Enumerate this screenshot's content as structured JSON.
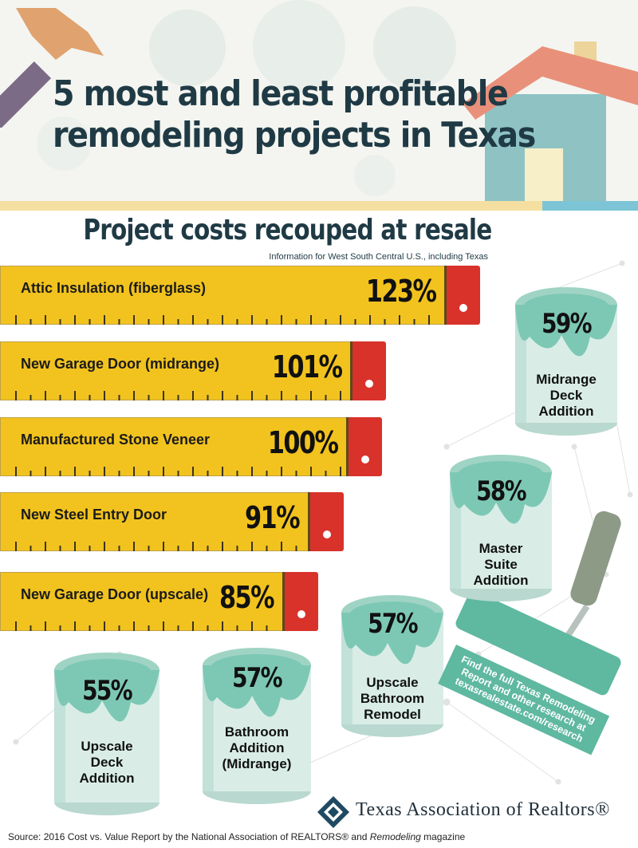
{
  "header": {
    "title_line1": "5 most and least profitable",
    "title_line2": "remodeling projects in Texas"
  },
  "chart": {
    "subtitle": "Project costs recouped at resale",
    "note": "Information for West South Central U.S., including Texas"
  },
  "chart_data": {
    "type": "bar",
    "title": "Project costs recouped at resale",
    "subtitle": "Information for West South Central U.S., including Texas",
    "unit": "%",
    "most_profitable": [
      {
        "label": "Attic Insulation (fiberglass)",
        "value": 123,
        "display": "123%"
      },
      {
        "label": "New Garage Door (midrange)",
        "value": 101,
        "display": "101%"
      },
      {
        "label": "Manufactured Stone Veneer",
        "value": 100,
        "display": "100%"
      },
      {
        "label": "New Steel Entry Door",
        "value": 91,
        "display": "91%"
      },
      {
        "label": "New Garage Door (upscale)",
        "value": 85,
        "display": "85%"
      }
    ],
    "least_profitable": [
      {
        "label": "Midrange Deck Addition",
        "lines": [
          "Midrange",
          "Deck",
          "Addition"
        ],
        "value": 59,
        "display": "59%"
      },
      {
        "label": "Master Suite Addition",
        "lines": [
          "Master",
          "Suite",
          "Addition"
        ],
        "value": 58,
        "display": "58%"
      },
      {
        "label": "Upscale Bathroom Remodel",
        "lines": [
          "Upscale",
          "Bathroom",
          "Remodel"
        ],
        "value": 57,
        "display": "57%"
      },
      {
        "label": "Bathroom Addition (Midrange)",
        "lines": [
          "Bathroom",
          "Addition",
          "(Midrange)"
        ],
        "value": 57,
        "display": "57%"
      },
      {
        "label": "Upscale Deck Addition",
        "lines": [
          "Upscale",
          "Deck",
          "Addition"
        ],
        "value": 55,
        "display": "55%"
      }
    ]
  },
  "promo": {
    "line1": "Find the full Texas Remodeling",
    "line2": "Report and other research at",
    "line3": "texasrealestate.com/research"
  },
  "footer": {
    "org_name": "Texas Association of Realtors®",
    "source_prefix": "Source: 2016 Cost vs. Value Report by the National Association of REALTORS® and ",
    "source_magazine": "Remodeling",
    "source_suffix": " magazine"
  },
  "colors": {
    "tape": "#f2c31e",
    "tape_cap": "#d8322b",
    "paint": "#7dc8b4",
    "can": "#d9ede6",
    "title": "#1f3a45",
    "promo": "#5fb8a0"
  }
}
